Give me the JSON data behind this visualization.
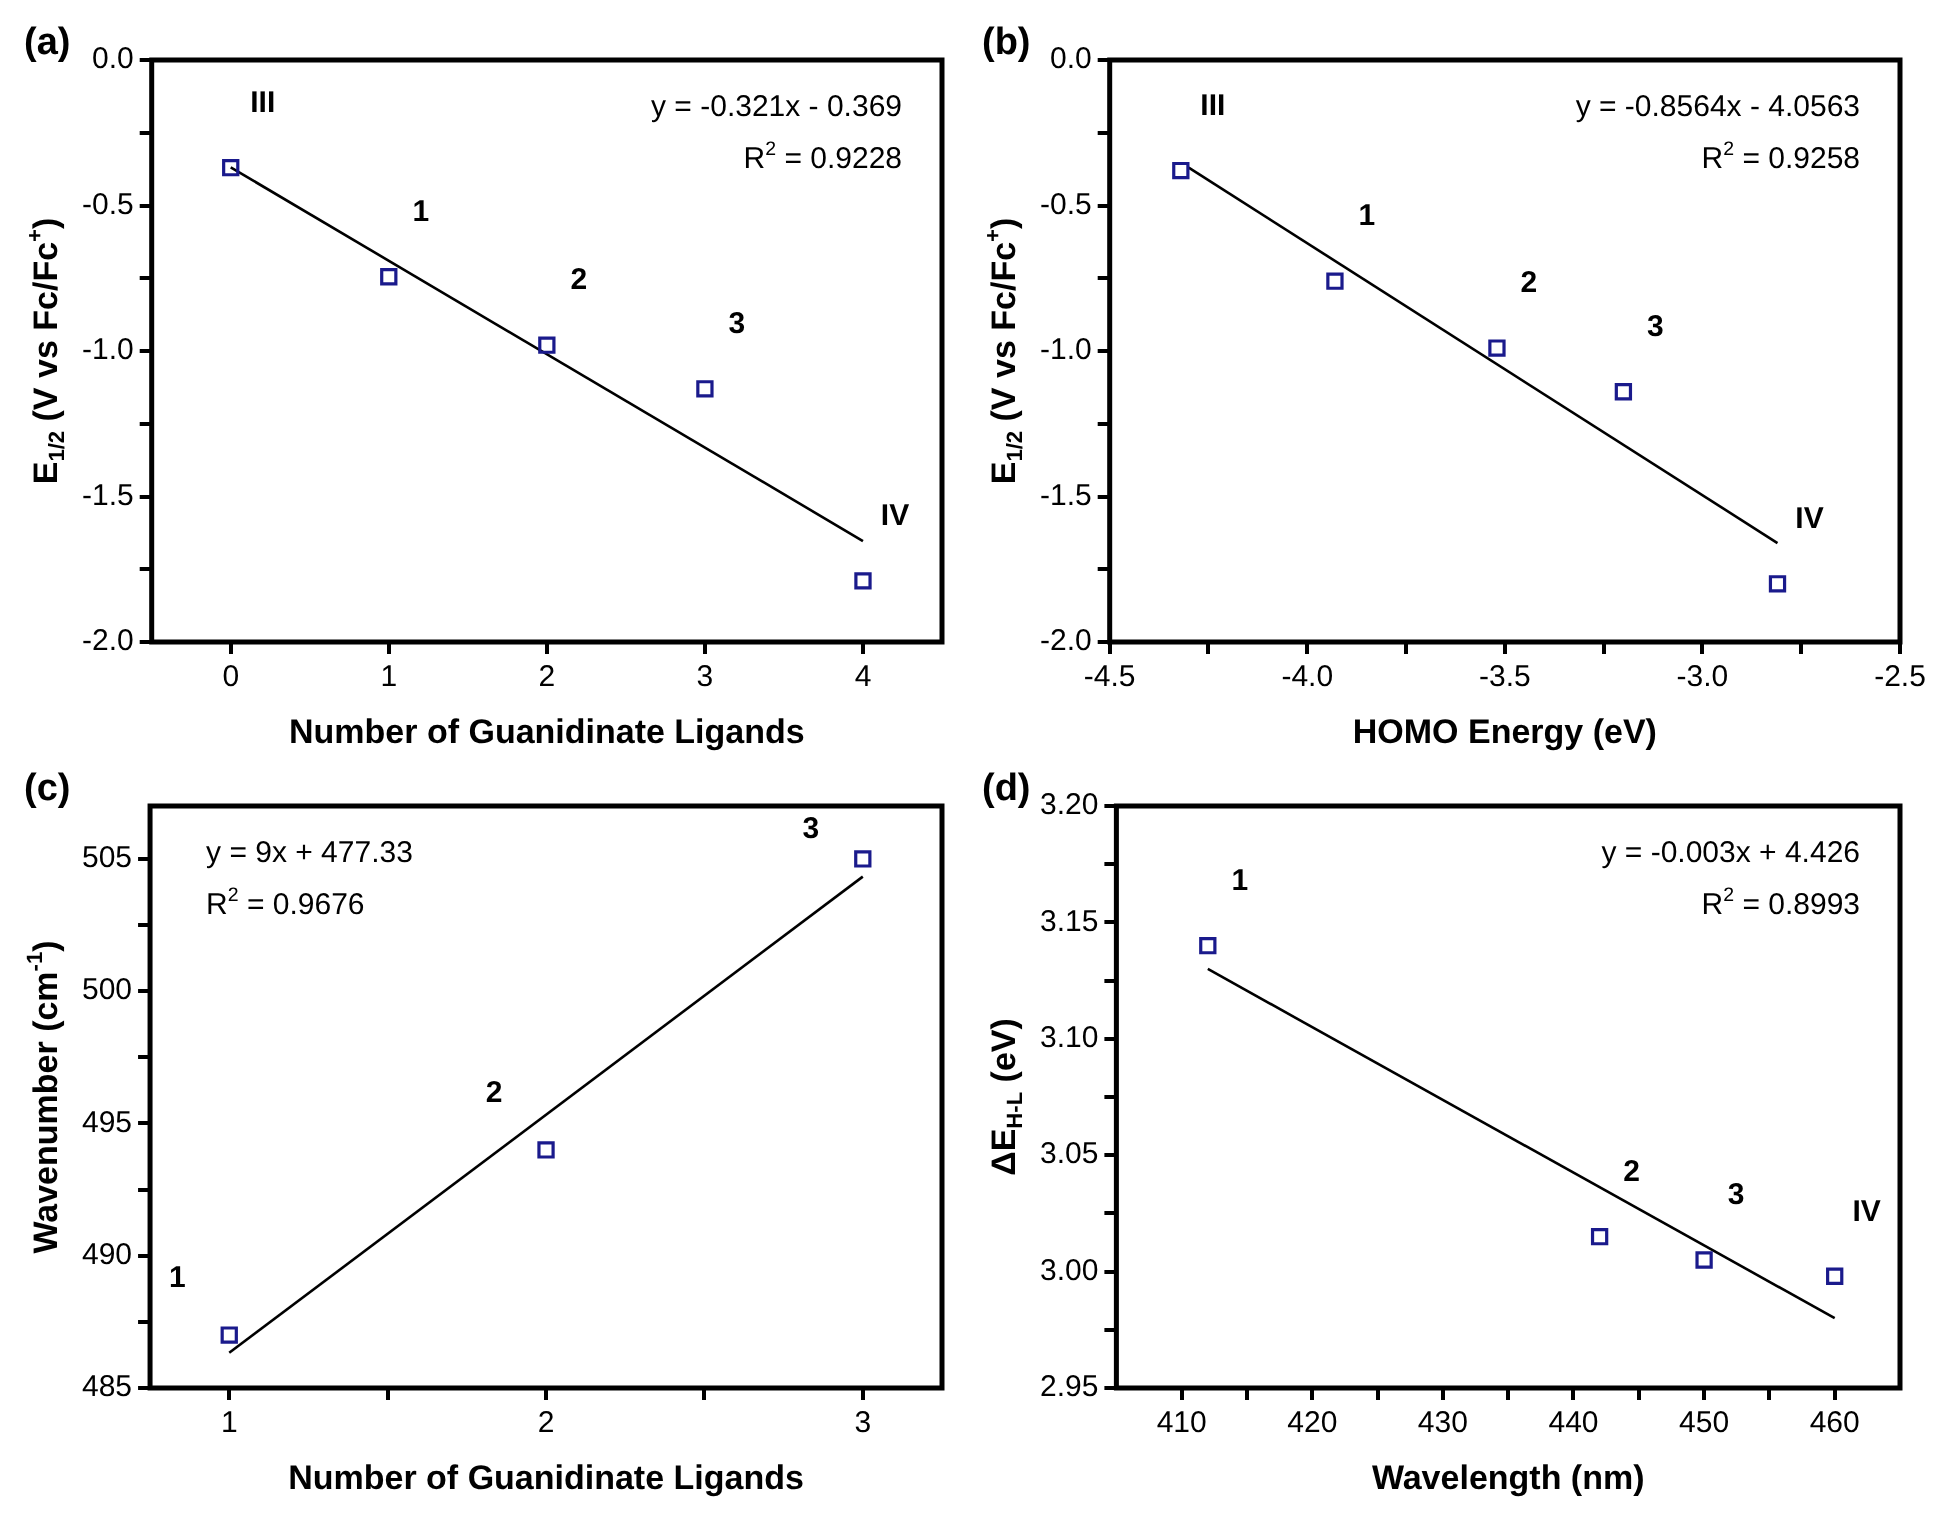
{
  "chart_data": [
    {
      "type": "scatter",
      "title": "(a)",
      "xlabel": "Number of Guanidinate Ligands",
      "ylabel": "E$_{1/2}$ (V vs Fc/Fc$^{+}$)",
      "xlim": [
        -0.5,
        4.5
      ],
      "xticks": [
        0,
        1,
        2,
        3,
        4
      ],
      "ylim": [
        -2,
        0
      ],
      "yticks": [
        {
          "value": -2,
          "label": "-2.0"
        },
        {
          "value": -1.75,
          "label": null
        },
        {
          "value": -1.5,
          "label": "-1.5"
        },
        {
          "value": -1.25,
          "label": null
        },
        {
          "value": -1,
          "label": "-1.0"
        },
        {
          "value": -0.75,
          "label": null
        },
        {
          "value": -0.5,
          "label": "-0.5"
        },
        {
          "value": -0.25,
          "label": null
        },
        {
          "value": 0,
          "label": "0.0"
        }
      ],
      "grid": false,
      "legend": false,
      "marker": "square",
      "series": [
        {
          "color": "#1a1a8c",
          "x": [
            0,
            1,
            2,
            3,
            4
          ],
          "values": [
            -0.37,
            -0.745,
            -0.98,
            -1.13,
            -1.79
          ]
        },
        {
          "type": "line",
          "color": "#000000",
          "marker": "none",
          "line_style": "solid",
          "x": [
            0,
            4
          ],
          "values": [
            -0.369,
            -1.653
          ]
        }
      ],
      "annotations": [
        "y = -0.321x - 0.369",
        "R$^{2}$ = 0.9228",
        "III",
        "1",
        "2",
        "3",
        "IV"
      ]
    },
    {
      "type": "scatter",
      "title": "(b)",
      "xlabel": "HOMO Energy (eV)",
      "ylabel": "E$_{1/2}$ (V vs Fc/Fc$^{+}$)",
      "xlim": [
        -4.5,
        -2.5
      ],
      "xticks": [
        {
          "value": -4.5,
          "label": "-4.5"
        },
        {
          "value": -4.25,
          "label": null
        },
        {
          "value": -4,
          "label": "-4.0"
        },
        {
          "value": -3.75,
          "label": null
        },
        {
          "value": -3.5,
          "label": "-3.5"
        },
        {
          "value": -3.25,
          "label": null
        },
        {
          "value": -3,
          "label": "-3.0"
        },
        {
          "value": -2.75,
          "label": null
        },
        {
          "value": -2.5,
          "label": "-2.5"
        }
      ],
      "ylim": [
        -2,
        0
      ],
      "yticks": [
        {
          "value": -2,
          "label": "-2.0"
        },
        {
          "value": -1.75,
          "label": null
        },
        {
          "value": -1.5,
          "label": "-1.5"
        },
        {
          "value": -1.25,
          "label": null
        },
        {
          "value": -1,
          "label": "-1.0"
        },
        {
          "value": -0.75,
          "label": null
        },
        {
          "value": -0.5,
          "label": "-0.5"
        },
        {
          "value": -0.25,
          "label": null
        },
        {
          "value": 0,
          "label": "0.0"
        }
      ],
      "grid": false,
      "legend": false,
      "marker": "square",
      "series": [
        {
          "color": "#1a1a8c",
          "x": [
            -4.32,
            -3.93,
            -3.52,
            -3.2,
            -2.81
          ],
          "values": [
            -0.38,
            -0.76,
            -0.99,
            -1.14,
            -1.8
          ]
        },
        {
          "type": "line",
          "color": "#000000",
          "marker": "none",
          "line_style": "solid",
          "x": [
            -4.3,
            -2.81
          ],
          "values": [
            -0.37,
            -1.66
          ]
        }
      ],
      "annotations": [
        "y = -0.8564x - 4.0563",
        "R$^{2}$ = 0.9258",
        "III",
        "1",
        "2",
        "3",
        "IV"
      ]
    },
    {
      "type": "scatter",
      "title": "(c)",
      "xlabel": "Number of Guanidinate Ligands",
      "ylabel": "Wavenumber (cm$^{-1}$)",
      "xlim": [
        0.75,
        3.25
      ],
      "xticks": [
        1,
        {
          "value": 1.5,
          "label": null
        },
        2,
        {
          "value": 2.5,
          "label": null
        },
        3
      ],
      "ylim": [
        485,
        507
      ],
      "yticks": [
        485,
        {
          "value": 487.5,
          "label": null
        },
        490,
        {
          "value": 492.5,
          "label": null
        },
        495,
        {
          "value": 497.5,
          "label": null
        },
        500,
        {
          "value": 502.5,
          "label": null
        },
        505
      ],
      "grid": false,
      "legend": false,
      "marker": "square",
      "series": [
        {
          "color": "#1a1a8c",
          "x": [
            1,
            2,
            3
          ],
          "values": [
            487,
            494,
            505
          ]
        },
        {
          "type": "line",
          "color": "#000000",
          "marker": "none",
          "line_style": "solid",
          "x": [
            1,
            3
          ],
          "values": [
            486.33,
            504.33
          ]
        }
      ],
      "annotations": [
        "y = 9x + 477.33",
        "R$^{2}$ = 0.9676",
        "1",
        "2",
        "3"
      ]
    },
    {
      "type": "scatter",
      "title": "(d)",
      "xlabel": "Wavelength (nm)",
      "ylabel": "ΔE$_{H-L}$ (eV)",
      "xlim": [
        405,
        465
      ],
      "xticks": [
        410,
        {
          "value": 415,
          "label": null
        },
        420,
        {
          "value": 425,
          "label": null
        },
        430,
        {
          "value": 435,
          "label": null
        },
        440,
        {
          "value": 445,
          "label": null
        },
        450,
        {
          "value": 455,
          "label": null
        },
        460
      ],
      "ylim": [
        2.95,
        3.2
      ],
      "yticks": [
        {
          "value": 2.95,
          "label": "2.95"
        },
        {
          "value": 2.975,
          "label": null
        },
        {
          "value": 3,
          "label": "3.00"
        },
        {
          "value": 3.025,
          "label": null
        },
        {
          "value": 3.05,
          "label": "3.05"
        },
        {
          "value": 3.075,
          "label": null
        },
        {
          "value": 3.1,
          "label": "3.10"
        },
        {
          "value": 3.125,
          "label": null
        },
        {
          "value": 3.15,
          "label": "3.15"
        },
        {
          "value": 3.175,
          "label": null
        },
        {
          "value": 3.2,
          "label": "3.20"
        }
      ],
      "grid": false,
      "legend": false,
      "marker": "square",
      "series": [
        {
          "color": "#1a1a8c",
          "x": [
            412,
            442,
            450,
            460
          ],
          "values": [
            3.14,
            3.015,
            3.005,
            2.998
          ]
        },
        {
          "type": "line",
          "color": "#000000",
          "marker": "none",
          "line_style": "solid",
          "x": [
            412,
            460
          ],
          "values": [
            3.13,
            2.98
          ]
        }
      ],
      "annotations": [
        "y = -0.003x + 4.426",
        "R$^{2}$ = 0.8993",
        "1",
        "2",
        "3",
        "IV"
      ]
    }
  ]
}
